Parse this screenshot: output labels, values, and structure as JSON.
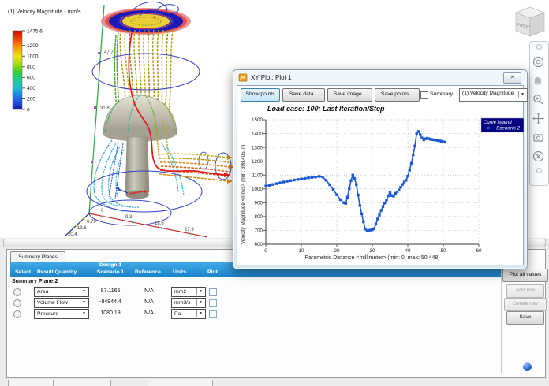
{
  "icons": {
    "dropdown_arrow": "▼",
    "close": "✕"
  },
  "legend3d": {
    "title": "(1) Velocity Magnitude - mm/s",
    "max": 1475.6,
    "ticks": [
      1475.6,
      1200,
      1000,
      800,
      600,
      400,
      200,
      0
    ]
  },
  "scene": {
    "measurement_labels": [
      "47.7",
      "31.8"
    ],
    "x_axis_ticks": [
      "0",
      "9.3",
      "18.6",
      "27.9"
    ],
    "z_axis_ticks": [
      "6.79",
      "13.6",
      "20.4"
    ]
  },
  "viewcube": {
    "front_label": "FRONT"
  },
  "xyplot": {
    "window_title": "XY Plot: Plot 1",
    "toolbar": {
      "show_points": "Show points",
      "save_data": "Save data...",
      "save_image": "Save image...",
      "save_points": "Save points...",
      "summary_label": "Summary",
      "quantity_selected": "(1) Velocity Magnitude"
    }
  },
  "chart_data": {
    "type": "line",
    "title": "Load case: 100; Last Iteration/Step",
    "xlabel": "Parametric Distance <millimeter> (min: 0, max: 50.448)",
    "ylabel": "Velocity Magnitude <mm/s> (min: 698.405, m",
    "xlim": [
      0,
      60
    ],
    "ylim": [
      600,
      1500
    ],
    "xticks": [
      0,
      10,
      20,
      30,
      40,
      50,
      60
    ],
    "yticks": [
      600,
      700,
      800,
      900,
      1000,
      1100,
      1200,
      1300,
      1400,
      1500
    ],
    "grid": true,
    "legend": {
      "title": "Curve legend",
      "position": "top-right",
      "background": "#000080"
    },
    "series": [
      {
        "name": "Scenario 2",
        "color": "#1d59d2",
        "marker": "square",
        "points": [
          [
            0,
            1020
          ],
          [
            1,
            1026
          ],
          [
            2,
            1032
          ],
          [
            3,
            1038
          ],
          [
            4,
            1044
          ],
          [
            5,
            1050
          ],
          [
            6,
            1055
          ],
          [
            7,
            1060
          ],
          [
            8,
            1064
          ],
          [
            9,
            1068
          ],
          [
            10,
            1072
          ],
          [
            11,
            1076
          ],
          [
            12,
            1080
          ],
          [
            13,
            1083
          ],
          [
            14,
            1086
          ],
          [
            15,
            1090
          ],
          [
            16,
            1086
          ],
          [
            17,
            1062
          ],
          [
            18,
            1030
          ],
          [
            19,
            995
          ],
          [
            20,
            958
          ],
          [
            21,
            922
          ],
          [
            22,
            900
          ],
          [
            22.5,
            895
          ],
          [
            23,
            940
          ],
          [
            23.5,
            1000
          ],
          [
            24,
            1060
          ],
          [
            24.5,
            1100
          ],
          [
            25,
            1075
          ],
          [
            25.5,
            1030
          ],
          [
            26,
            955
          ],
          [
            26.5,
            880
          ],
          [
            27,
            820
          ],
          [
            27.5,
            762
          ],
          [
            28,
            710
          ],
          [
            28.5,
            698
          ],
          [
            29,
            700
          ],
          [
            29.5,
            702
          ],
          [
            30,
            705
          ],
          [
            30.5,
            712
          ],
          [
            31,
            745
          ],
          [
            31.5,
            782
          ],
          [
            32,
            810
          ],
          [
            32.5,
            845
          ],
          [
            33,
            872
          ],
          [
            33.5,
            898
          ],
          [
            34,
            920
          ],
          [
            34.5,
            950
          ],
          [
            35,
            978
          ],
          [
            35.5,
            952
          ],
          [
            36,
            948
          ],
          [
            36.5,
            968
          ],
          [
            37,
            978
          ],
          [
            37.5,
            992
          ],
          [
            38,
            1012
          ],
          [
            38.5,
            1032
          ],
          [
            39,
            1050
          ],
          [
            39.5,
            1062
          ],
          [
            40,
            1092
          ],
          [
            40.5,
            1135
          ],
          [
            41,
            1185
          ],
          [
            41.5,
            1245
          ],
          [
            42,
            1310
          ],
          [
            42.5,
            1400
          ],
          [
            43,
            1415
          ],
          [
            43.5,
            1392
          ],
          [
            44,
            1368
          ],
          [
            44.5,
            1355
          ],
          [
            45,
            1362
          ],
          [
            45.5,
            1366
          ],
          [
            46,
            1362
          ],
          [
            46.5,
            1358
          ],
          [
            47,
            1356
          ],
          [
            47.5,
            1354
          ],
          [
            48,
            1352
          ],
          [
            48.5,
            1350
          ],
          [
            49,
            1347
          ],
          [
            49.5,
            1344
          ],
          [
            50,
            1340
          ],
          [
            50.448,
            1338
          ]
        ]
      }
    ]
  },
  "summary_panel": {
    "tab": "Summary Planes",
    "header": {
      "select": "Select",
      "result_quantity": "Result Quantity",
      "design": "Design 1",
      "scenario": "Scenario 1",
      "reference": "Reference",
      "units": "Units",
      "plot": "Plot"
    },
    "group_label": "Summary Plane 2",
    "rows": [
      {
        "quantity": "Area",
        "value": "87.1165",
        "reference": "N/A",
        "units": "mm2",
        "plot_checked": false
      },
      {
        "quantity": "Volume Flow",
        "value": "-84944.4",
        "reference": "N/A",
        "units": "mm3/s",
        "plot_checked": false
      },
      {
        "quantity": "Pressure",
        "value": "1080.19",
        "reference": "N/A",
        "units": "Pa",
        "plot_checked": false
      }
    ],
    "buttons": {
      "plot_all": "Plot all values",
      "add_row": "Add row",
      "delete_row": "Delete row",
      "save": "Save"
    }
  }
}
